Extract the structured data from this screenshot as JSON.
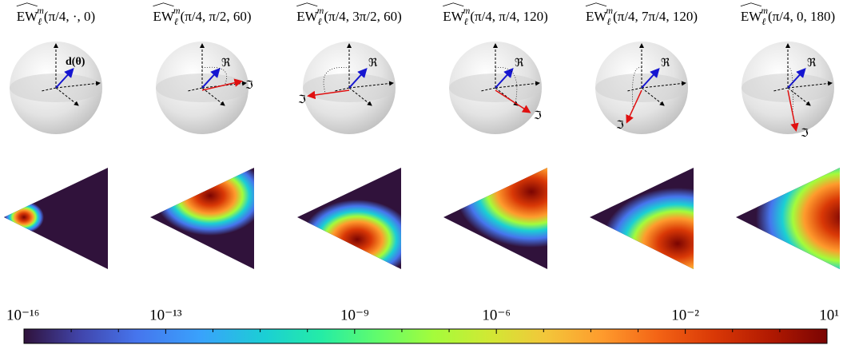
{
  "panels": [
    {
      "operator": "EW",
      "subscript": "ℓ",
      "superscript": "m",
      "args": "(π/4, ·, 0)",
      "labels": [
        "d(θ)"
      ]
    },
    {
      "operator": "EW",
      "subscript": "ℓ",
      "superscript": "m",
      "args": "(π/4, π/2, 60)",
      "labels": [
        "ℜ",
        "ℑ"
      ]
    },
    {
      "operator": "EW",
      "subscript": "ℓ",
      "superscript": "m",
      "args": "(π/4, 3π/2, 60)",
      "labels": [
        "ℜ",
        "ℑ"
      ]
    },
    {
      "operator": "EW",
      "subscript": "ℓ",
      "superscript": "m",
      "args": "(π/4, π/4, 120)",
      "labels": [
        "ℜ",
        "ℑ"
      ]
    },
    {
      "operator": "EW",
      "subscript": "ℓ",
      "superscript": "m",
      "args": "(π/4, 7π/4, 120)",
      "labels": [
        "ℜ",
        "ℑ"
      ]
    },
    {
      "operator": "EW",
      "subscript": "ℓ",
      "superscript": "m",
      "args": "(π/4, 0, 180)",
      "labels": [
        "ℜ",
        "ℑ"
      ]
    }
  ],
  "colorbar": {
    "log": true,
    "lim": [
      1e-16,
      10
    ],
    "ticks": [
      {
        "value": 1e-16,
        "label": "10⁻¹⁶"
      },
      {
        "value": 1e-13,
        "label": "10⁻¹³"
      },
      {
        "value": 1e-09,
        "label": "10⁻⁹"
      },
      {
        "value": 1e-06,
        "label": "10⁻⁶"
      },
      {
        "value": 0.01,
        "label": "10⁻²"
      },
      {
        "value": 10,
        "label": "10¹"
      }
    ],
    "minor_ticks": [
      1e-15,
      1e-14,
      1e-12,
      1e-11,
      1e-10,
      1e-08,
      1e-07,
      1e-05,
      0.0001,
      0.001,
      0.1,
      1
    ]
  }
}
